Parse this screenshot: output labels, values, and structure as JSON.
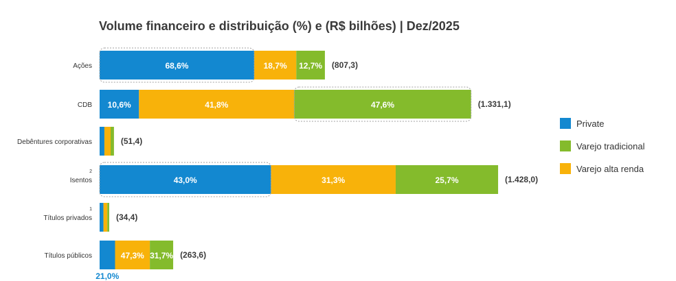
{
  "title": "Volume financeiro e distribuição (%) e (R$ bilhões) | Dez/2025",
  "chart_data": {
    "type": "bar",
    "orientation": "horizontal-stacked",
    "title": "Volume financeiro e distribuição (%) e (R$ bilhões) | Dez/2025",
    "x_unit": "R$ bilhões",
    "categories": [
      {
        "label": "Ações",
        "sup": "",
        "total": 807.3,
        "total_label": "(807,3)",
        "shares": [
          68.6,
          18.7,
          12.7
        ],
        "labels": [
          "68,6%",
          "18,7%",
          "12,7%"
        ],
        "highlight": 0
      },
      {
        "label": "CDB",
        "sup": "",
        "total": 1331.1,
        "total_label": "(1.331,1)",
        "shares": [
          10.6,
          41.8,
          47.6
        ],
        "labels": [
          "10,6%",
          "41,8%",
          "47,6%"
        ],
        "highlight": 2
      },
      {
        "label": "Debêntures corporativas",
        "sup": "",
        "total": 51.4,
        "total_label": "(51,4)",
        "shares": [
          33.3,
          43.3,
          23.4
        ],
        "labels": [
          "",
          "",
          ""
        ],
        "highlight": -1
      },
      {
        "label": "Isentos",
        "sup": "2",
        "total": 1428.0,
        "total_label": "(1.428,0)",
        "shares": [
          43.0,
          31.3,
          25.7
        ],
        "labels": [
          "43,0%",
          "31,3%",
          "25,7%"
        ],
        "highlight": 0
      },
      {
        "label": "Títulos privados",
        "sup": "1",
        "total": 34.4,
        "total_label": "(34,4)",
        "shares": [
          40.0,
          40.0,
          20.0
        ],
        "labels": [
          "",
          "",
          ""
        ],
        "highlight": -1
      },
      {
        "label": "Títulos públicos",
        "sup": "",
        "total": 263.6,
        "total_label": "(263,6)",
        "shares": [
          21.0,
          47.3,
          31.7
        ],
        "labels": [
          "",
          "47,3%",
          "31,7%"
        ],
        "highlight": -1
      }
    ],
    "segment_order": [
      "Private",
      "Varejo alta renda",
      "Varejo tradicional"
    ],
    "below_bar_annotation": {
      "category": "Títulos públicos",
      "text": "21,0%"
    },
    "legend": [
      {
        "name": "Private",
        "color": "#1388d0"
      },
      {
        "name": "Varejo tradicional",
        "color": "#84bb2c"
      },
      {
        "name": "Varejo alta renda",
        "color": "#f8b20a"
      }
    ],
    "colors": {
      "Private": "#1388d0",
      "Varejo alta renda": "#f8b20a",
      "Varejo tradicional": "#84bb2c"
    }
  }
}
